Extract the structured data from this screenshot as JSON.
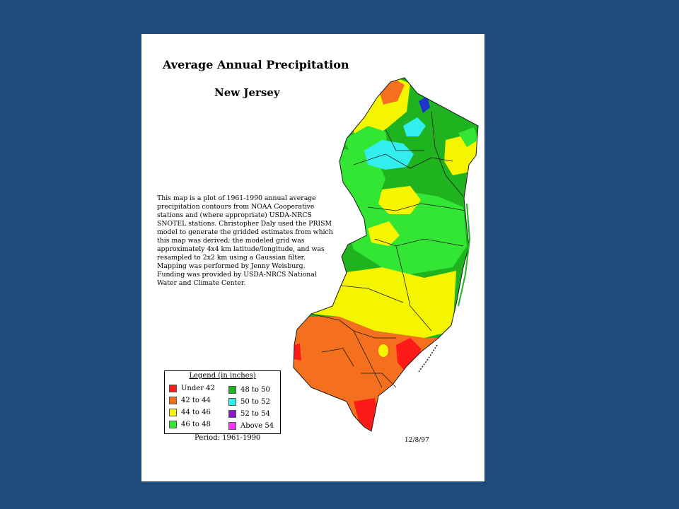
{
  "map": {
    "title": "Average Annual Precipitation",
    "subtitle": "New Jersey",
    "description": "This map is a plot of 1961-1990 annual average precipitation contours from NOAA Cooperative stations and (where appropriate) USDA-NRCS SNOTEL stations. Christopher Daly used the PRISM model to generate the gridded estimates from which this map was derived; the modeled grid was approximately 4x4 km latitude/longitude, and was resampled to 2x2 km using a Gaussian filter. Mapping was performed by Jenny Weisburg. Funding was provided by USDA-NRCS National Water and Climate Center.",
    "legend": {
      "title": "Legend (in inches)",
      "items": [
        {
          "label": "Under 42",
          "color": "#ff1a1a"
        },
        {
          "label": "42 to 44",
          "color": "#f4701e"
        },
        {
          "label": "44 to 46",
          "color": "#f5f500"
        },
        {
          "label": "46 to 48",
          "color": "#33e633"
        },
        {
          "label": "48 to 50",
          "color": "#1fb31f"
        },
        {
          "label": "50 to 52",
          "color": "#33eeee"
        },
        {
          "label": "52 to 54",
          "color": "#8a1acc"
        },
        {
          "label": "Above 54",
          "color": "#ff33ff"
        }
      ]
    },
    "period": "Period: 1961-1990",
    "date": "12/8/97"
  }
}
